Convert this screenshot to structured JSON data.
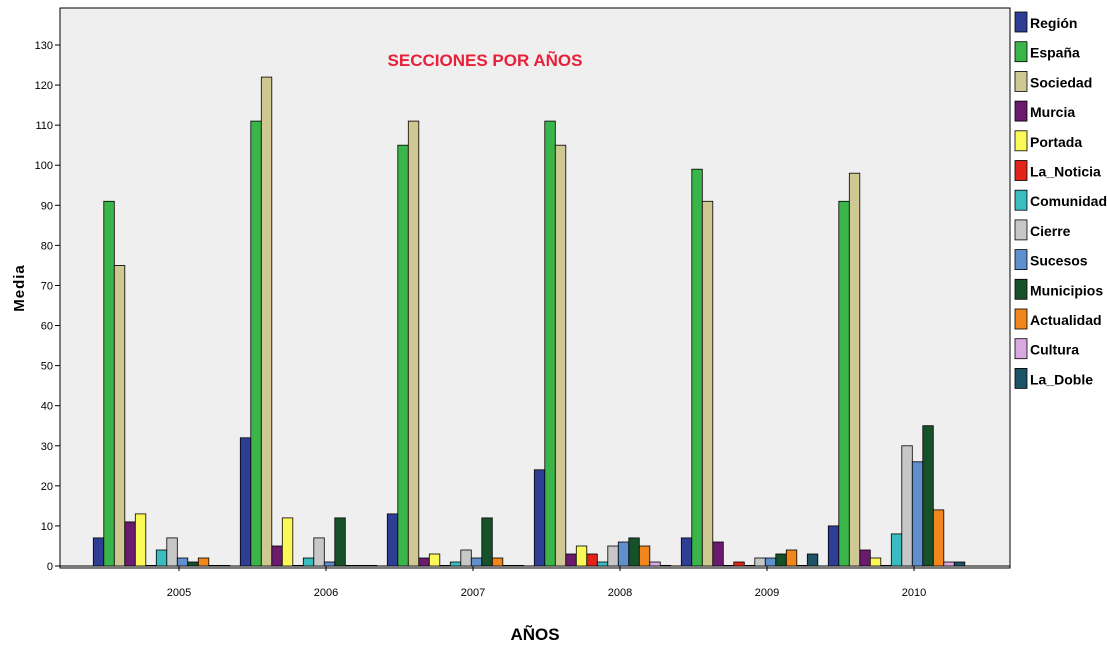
{
  "chart_data": {
    "type": "bar",
    "title": "SECCIONES POR AÑOS",
    "xlabel": "AÑOS",
    "ylabel": "Media",
    "ylim": [
      0,
      137
    ],
    "yticks": [
      0,
      10,
      20,
      30,
      40,
      50,
      60,
      70,
      80,
      90,
      100,
      110,
      120,
      130
    ],
    "categories": [
      "2005",
      "2006",
      "2007",
      "2008",
      "2009",
      "2010"
    ],
    "legend_position": "right",
    "grid": false,
    "colors": {
      "plot_background": "#efefef",
      "title": "#e8203a"
    },
    "series": [
      {
        "name": "Región",
        "color": "#2e3e94",
        "values": [
          7,
          32,
          13,
          24,
          7,
          10
        ]
      },
      {
        "name": "España",
        "color": "#3ab54a",
        "values": [
          91,
          111,
          105,
          111,
          99,
          91
        ]
      },
      {
        "name": "Sociedad",
        "color": "#cfc893",
        "values": [
          75,
          122,
          111,
          105,
          91,
          98
        ]
      },
      {
        "name": "Murcia",
        "color": "#6a1b6e",
        "values": [
          11,
          5,
          2,
          3,
          6,
          4
        ]
      },
      {
        "name": "Portada",
        "color": "#fbf95a",
        "values": [
          13,
          12,
          3,
          5,
          0,
          2
        ]
      },
      {
        "name": "La_Noticia",
        "color": "#e2231a",
        "values": [
          0,
          0,
          0,
          3,
          1,
          0
        ]
      },
      {
        "name": "Comunidad",
        "color": "#3bbcc0",
        "values": [
          4,
          2,
          1,
          1,
          0,
          8
        ]
      },
      {
        "name": "Cierre",
        "color": "#c7c7c7",
        "values": [
          7,
          7,
          4,
          5,
          2,
          30
        ]
      },
      {
        "name": "Sucesos",
        "color": "#5f8fcc",
        "values": [
          2,
          1,
          2,
          6,
          2,
          26
        ]
      },
      {
        "name": "Municipios",
        "color": "#16512a",
        "values": [
          1,
          12,
          12,
          7,
          3,
          35
        ]
      },
      {
        "name": "Actualidad",
        "color": "#f0861c",
        "values": [
          2,
          0,
          2,
          5,
          4,
          14
        ]
      },
      {
        "name": "Cultura",
        "color": "#d7a9e0",
        "values": [
          0,
          0,
          0,
          1,
          0,
          1
        ]
      },
      {
        "name": "La_Doble",
        "color": "#1d5366",
        "values": [
          0,
          0,
          0,
          0,
          3,
          1
        ]
      }
    ]
  }
}
